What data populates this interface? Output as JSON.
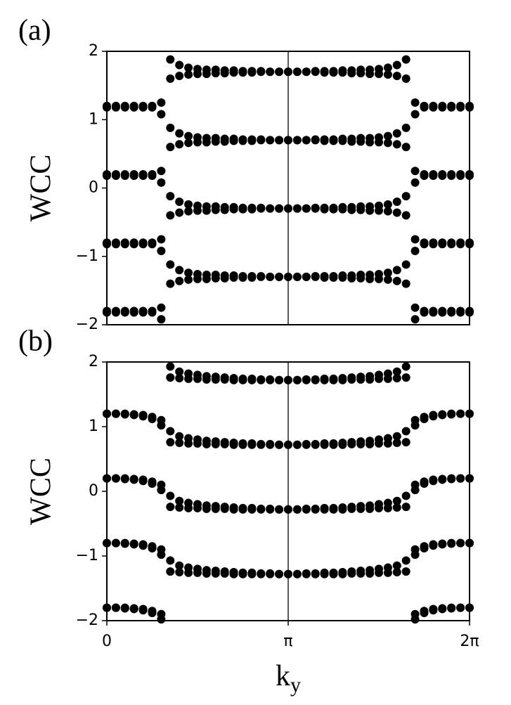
{
  "chart_data": [
    {
      "type": "scatter",
      "label": "(a)",
      "ylabel": "WCC",
      "x": [
        0,
        0.1571,
        0.3142,
        0.4712,
        0.6283,
        0.7854,
        0.9425,
        1.0996,
        1.2566,
        1.4137,
        1.5708,
        1.7279,
        1.885,
        2.042,
        2.1991,
        2.3562,
        2.5133,
        2.6704,
        2.8274,
        2.9845,
        3.1416,
        3.2987,
        3.4558,
        3.6128,
        3.7699,
        3.927,
        4.0841,
        4.2412,
        4.3982,
        4.5553,
        4.7124,
        4.8695,
        5.0265,
        5.1836,
        5.3407,
        5.4978,
        5.6549,
        5.8119,
        5.969,
        6.1261,
        6.2832
      ],
      "xlim": [
        0,
        6.2832
      ],
      "ylim": [
        -2,
        2
      ],
      "yticks": [
        {
          "value": -2,
          "label": "−2"
        },
        {
          "value": -1,
          "label": "−1"
        },
        0,
        1,
        2
      ],
      "vline": 3.1416,
      "series": [
        {
          "color": "#000000",
          "values": [
            1.2,
            1.2,
            1.2,
            1.2,
            1.2,
            1.2,
            1.25,
            1.88,
            1.8,
            1.76,
            1.74,
            1.73,
            1.73,
            1.72,
            1.72,
            1.71,
            1.71,
            1.71,
            1.7,
            1.7,
            1.7,
            1.7,
            1.7,
            1.71,
            1.71,
            1.71,
            1.72,
            1.72,
            1.73,
            1.73,
            1.74,
            1.76,
            1.8,
            1.88,
            1.25,
            1.2,
            1.2,
            1.2,
            1.2,
            1.2,
            1.2
          ]
        },
        {
          "color": "#000000",
          "values": [
            1.18,
            1.18,
            1.18,
            1.18,
            1.18,
            1.18,
            1.08,
            1.6,
            1.64,
            1.66,
            1.67,
            1.67,
            1.68,
            1.68,
            1.69,
            1.69,
            1.69,
            1.7,
            1.7,
            1.7,
            1.7,
            1.7,
            1.7,
            1.7,
            1.69,
            1.69,
            1.69,
            1.68,
            1.68,
            1.67,
            1.67,
            1.66,
            1.64,
            1.6,
            1.08,
            1.18,
            1.18,
            1.18,
            1.18,
            1.18,
            1.18
          ]
        },
        {
          "color": "#000000",
          "values": [
            0.2,
            0.2,
            0.2,
            0.2,
            0.2,
            0.2,
            0.25,
            0.88,
            0.8,
            0.76,
            0.74,
            0.73,
            0.73,
            0.72,
            0.72,
            0.71,
            0.71,
            0.71,
            0.7,
            0.7,
            0.7,
            0.7,
            0.7,
            0.71,
            0.71,
            0.71,
            0.72,
            0.72,
            0.73,
            0.73,
            0.74,
            0.76,
            0.8,
            0.88,
            0.25,
            0.2,
            0.2,
            0.2,
            0.2,
            0.2,
            0.2
          ]
        },
        {
          "color": "#000000",
          "values": [
            0.18,
            0.18,
            0.18,
            0.18,
            0.18,
            0.18,
            0.08,
            0.6,
            0.64,
            0.66,
            0.67,
            0.67,
            0.68,
            0.68,
            0.69,
            0.69,
            0.69,
            0.7,
            0.7,
            0.7,
            0.7,
            0.7,
            0.7,
            0.7,
            0.69,
            0.69,
            0.69,
            0.68,
            0.68,
            0.67,
            0.67,
            0.66,
            0.64,
            0.6,
            0.08,
            0.18,
            0.18,
            0.18,
            0.18,
            0.18,
            0.18
          ]
        },
        {
          "color": "#000000",
          "values": [
            -0.8,
            -0.8,
            -0.8,
            -0.8,
            -0.8,
            -0.8,
            -0.75,
            -0.12,
            -0.2,
            -0.24,
            -0.26,
            -0.27,
            -0.27,
            -0.28,
            -0.28,
            -0.29,
            -0.29,
            -0.29,
            -0.3,
            -0.3,
            -0.3,
            -0.3,
            -0.3,
            -0.29,
            -0.29,
            -0.29,
            -0.28,
            -0.28,
            -0.27,
            -0.27,
            -0.26,
            -0.24,
            -0.2,
            -0.12,
            -0.75,
            -0.8,
            -0.8,
            -0.8,
            -0.8,
            -0.8,
            -0.8
          ]
        },
        {
          "color": "#000000",
          "values": [
            -0.82,
            -0.82,
            -0.82,
            -0.82,
            -0.82,
            -0.82,
            -0.92,
            -0.4,
            -0.36,
            -0.34,
            -0.33,
            -0.33,
            -0.32,
            -0.32,
            -0.31,
            -0.31,
            -0.31,
            -0.3,
            -0.3,
            -0.3,
            -0.3,
            -0.3,
            -0.3,
            -0.3,
            -0.31,
            -0.31,
            -0.31,
            -0.32,
            -0.32,
            -0.33,
            -0.33,
            -0.34,
            -0.36,
            -0.4,
            -0.92,
            -0.82,
            -0.82,
            -0.82,
            -0.82,
            -0.82,
            -0.82
          ]
        },
        {
          "color": "#000000",
          "values": [
            -1.8,
            -1.8,
            -1.8,
            -1.8,
            -1.8,
            -1.8,
            -1.75,
            -1.12,
            -1.2,
            -1.24,
            -1.26,
            -1.27,
            -1.27,
            -1.28,
            -1.28,
            -1.29,
            -1.29,
            -1.29,
            -1.3,
            -1.3,
            -1.3,
            -1.3,
            -1.3,
            -1.29,
            -1.29,
            -1.29,
            -1.28,
            -1.28,
            -1.27,
            -1.27,
            -1.26,
            -1.24,
            -1.2,
            -1.12,
            -1.75,
            -1.8,
            -1.8,
            -1.8,
            -1.8,
            -1.8,
            -1.8
          ]
        },
        {
          "color": "#000000",
          "values": [
            -1.82,
            -1.82,
            -1.82,
            -1.82,
            -1.82,
            -1.82,
            -1.92,
            -1.4,
            -1.36,
            -1.34,
            -1.33,
            -1.33,
            -1.32,
            -1.32,
            -1.31,
            -1.31,
            -1.31,
            -1.3,
            -1.3,
            -1.3,
            -1.3,
            -1.3,
            -1.3,
            -1.3,
            -1.31,
            -1.31,
            -1.31,
            -1.32,
            -1.32,
            -1.33,
            -1.33,
            -1.34,
            -1.36,
            -1.4,
            -1.92,
            -1.82,
            -1.82,
            -1.82,
            -1.82,
            -1.82,
            -1.82
          ]
        }
      ]
    },
    {
      "type": "scatter",
      "label": "(b)",
      "ylabel": "WCC",
      "xlabel": "k",
      "xlabel_sub": "y",
      "x": [
        0,
        0.1571,
        0.3142,
        0.4712,
        0.6283,
        0.7854,
        0.9425,
        1.0996,
        1.2566,
        1.4137,
        1.5708,
        1.7279,
        1.885,
        2.042,
        2.1991,
        2.3562,
        2.5133,
        2.6704,
        2.8274,
        2.9845,
        3.1416,
        3.2987,
        3.4558,
        3.6128,
        3.7699,
        3.927,
        4.0841,
        4.2412,
        4.3982,
        4.5553,
        4.7124,
        4.8695,
        5.0265,
        5.1836,
        5.3407,
        5.4978,
        5.6549,
        5.8119,
        5.969,
        6.1261,
        6.2832
      ],
      "xlim": [
        0,
        6.2832
      ],
      "ylim": [
        -2,
        2
      ],
      "xticks": [
        0,
        {
          "value": 3.1416,
          "label": "π"
        },
        {
          "value": 6.2832,
          "label": "2π"
        }
      ],
      "yticks": [
        {
          "value": -2,
          "label": "−2"
        },
        {
          "value": -1,
          "label": "−1"
        },
        0,
        1,
        2
      ],
      "vline": 3.1416,
      "series": [
        {
          "color": "#000000",
          "values": [
            1.2,
            1.2,
            1.2,
            1.19,
            1.18,
            1.15,
            1.1,
            1.93,
            1.85,
            1.82,
            1.8,
            1.78,
            1.77,
            1.76,
            1.75,
            1.74,
            1.74,
            1.73,
            1.73,
            1.72,
            1.72,
            1.72,
            1.73,
            1.73,
            1.74,
            1.74,
            1.75,
            1.76,
            1.77,
            1.78,
            1.8,
            1.82,
            1.85,
            1.93,
            1.1,
            1.15,
            1.18,
            1.19,
            1.2,
            1.2,
            1.2
          ]
        },
        {
          "color": "#000000",
          "values": [
            1.2,
            1.2,
            1.19,
            1.18,
            1.16,
            1.12,
            1.02,
            1.76,
            1.75,
            1.74,
            1.74,
            1.73,
            1.73,
            1.73,
            1.72,
            1.72,
            1.72,
            1.72,
            1.72,
            1.72,
            1.72,
            1.72,
            1.72,
            1.72,
            1.72,
            1.72,
            1.72,
            1.73,
            1.73,
            1.73,
            1.74,
            1.74,
            1.75,
            1.76,
            1.02,
            1.12,
            1.16,
            1.18,
            1.19,
            1.2,
            1.2
          ]
        },
        {
          "color": "#000000",
          "values": [
            0.2,
            0.2,
            0.2,
            0.19,
            0.18,
            0.15,
            0.1,
            0.93,
            0.85,
            0.82,
            0.8,
            0.78,
            0.77,
            0.76,
            0.75,
            0.74,
            0.74,
            0.73,
            0.73,
            0.72,
            0.72,
            0.72,
            0.73,
            0.73,
            0.74,
            0.74,
            0.75,
            0.76,
            0.77,
            0.78,
            0.8,
            0.82,
            0.85,
            0.93,
            0.1,
            0.15,
            0.18,
            0.19,
            0.2,
            0.2,
            0.2
          ]
        },
        {
          "color": "#000000",
          "values": [
            0.2,
            0.2,
            0.19,
            0.18,
            0.16,
            0.12,
            0.02,
            0.76,
            0.75,
            0.74,
            0.74,
            0.73,
            0.73,
            0.73,
            0.72,
            0.72,
            0.72,
            0.72,
            0.72,
            0.72,
            0.72,
            0.72,
            0.72,
            0.72,
            0.72,
            0.72,
            0.72,
            0.73,
            0.73,
            0.73,
            0.74,
            0.74,
            0.75,
            0.76,
            0.02,
            0.12,
            0.16,
            0.18,
            0.19,
            0.2,
            0.2
          ]
        },
        {
          "color": "#000000",
          "values": [
            -0.8,
            -0.8,
            -0.8,
            -0.81,
            -0.82,
            -0.85,
            -0.9,
            -0.07,
            -0.15,
            -0.18,
            -0.2,
            -0.22,
            -0.23,
            -0.24,
            -0.25,
            -0.26,
            -0.26,
            -0.27,
            -0.27,
            -0.28,
            -0.28,
            -0.28,
            -0.27,
            -0.27,
            -0.26,
            -0.26,
            -0.25,
            -0.24,
            -0.23,
            -0.22,
            -0.2,
            -0.18,
            -0.15,
            -0.07,
            -0.9,
            -0.85,
            -0.82,
            -0.81,
            -0.8,
            -0.8,
            -0.8
          ]
        },
        {
          "color": "#000000",
          "values": [
            -0.8,
            -0.8,
            -0.81,
            -0.82,
            -0.84,
            -0.88,
            -0.98,
            -0.24,
            -0.25,
            -0.26,
            -0.26,
            -0.27,
            -0.27,
            -0.27,
            -0.28,
            -0.28,
            -0.28,
            -0.28,
            -0.28,
            -0.28,
            -0.28,
            -0.28,
            -0.28,
            -0.28,
            -0.28,
            -0.28,
            -0.28,
            -0.27,
            -0.27,
            -0.27,
            -0.26,
            -0.26,
            -0.25,
            -0.24,
            -0.98,
            -0.88,
            -0.84,
            -0.82,
            -0.81,
            -0.8,
            -0.8
          ]
        },
        {
          "color": "#000000",
          "values": [
            -1.8,
            -1.8,
            -1.8,
            -1.81,
            -1.82,
            -1.85,
            -1.9,
            -1.07,
            -1.15,
            -1.18,
            -1.2,
            -1.22,
            -1.23,
            -1.24,
            -1.25,
            -1.26,
            -1.26,
            -1.27,
            -1.27,
            -1.28,
            -1.28,
            -1.28,
            -1.27,
            -1.27,
            -1.26,
            -1.26,
            -1.25,
            -1.24,
            -1.23,
            -1.22,
            -1.2,
            -1.18,
            -1.15,
            -1.07,
            -1.9,
            -1.85,
            -1.82,
            -1.81,
            -1.8,
            -1.8,
            -1.8
          ]
        },
        {
          "color": "#000000",
          "values": [
            -1.8,
            -1.8,
            -1.81,
            -1.82,
            -1.84,
            -1.88,
            -1.98,
            -1.24,
            -1.25,
            -1.26,
            -1.26,
            -1.27,
            -1.27,
            -1.27,
            -1.28,
            -1.28,
            -1.28,
            -1.28,
            -1.28,
            -1.28,
            -1.28,
            -1.28,
            -1.28,
            -1.28,
            -1.28,
            -1.28,
            -1.28,
            -1.27,
            -1.27,
            -1.27,
            -1.26,
            -1.26,
            -1.25,
            -1.24,
            -1.98,
            -1.88,
            -1.84,
            -1.82,
            -1.81,
            -1.8,
            -1.8
          ]
        }
      ]
    }
  ]
}
